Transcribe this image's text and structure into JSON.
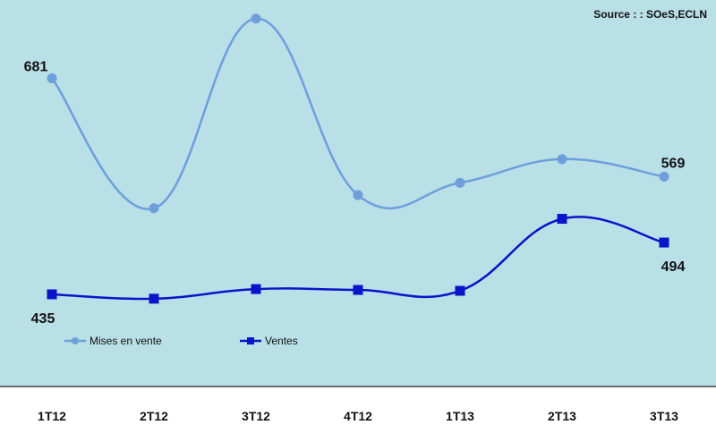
{
  "chart_data": {
    "type": "line",
    "source": "Source : : SOeS,ECLN",
    "categories": [
      "1T12",
      "2T12",
      "3T12",
      "4T12",
      "1T13",
      "2T13",
      "3T13"
    ],
    "series": [
      {
        "name": "Mises en vente",
        "values": [
          681,
          533,
          749,
          548,
          562,
          589,
          569
        ],
        "color": "#6e9fdb",
        "marker": "circle"
      },
      {
        "name": "Ventes",
        "values": [
          435,
          430,
          441,
          440,
          439,
          521,
          494
        ],
        "color": "#0a14c8",
        "marker": "square"
      }
    ],
    "data_labels": [
      {
        "series": 0,
        "index": 0,
        "text": "681",
        "pos": "above-left"
      },
      {
        "series": 0,
        "index": 6,
        "text": "569",
        "pos": "above"
      },
      {
        "series": 1,
        "index": 0,
        "text": "435",
        "pos": "below-left"
      },
      {
        "series": 1,
        "index": 6,
        "text": "494",
        "pos": "below"
      }
    ],
    "ylim": [
      330,
      760
    ],
    "legend_position": "bottom-left",
    "grid": false,
    "colors": {
      "plot_background": "#b9dfe7",
      "axis": "#444444"
    }
  }
}
